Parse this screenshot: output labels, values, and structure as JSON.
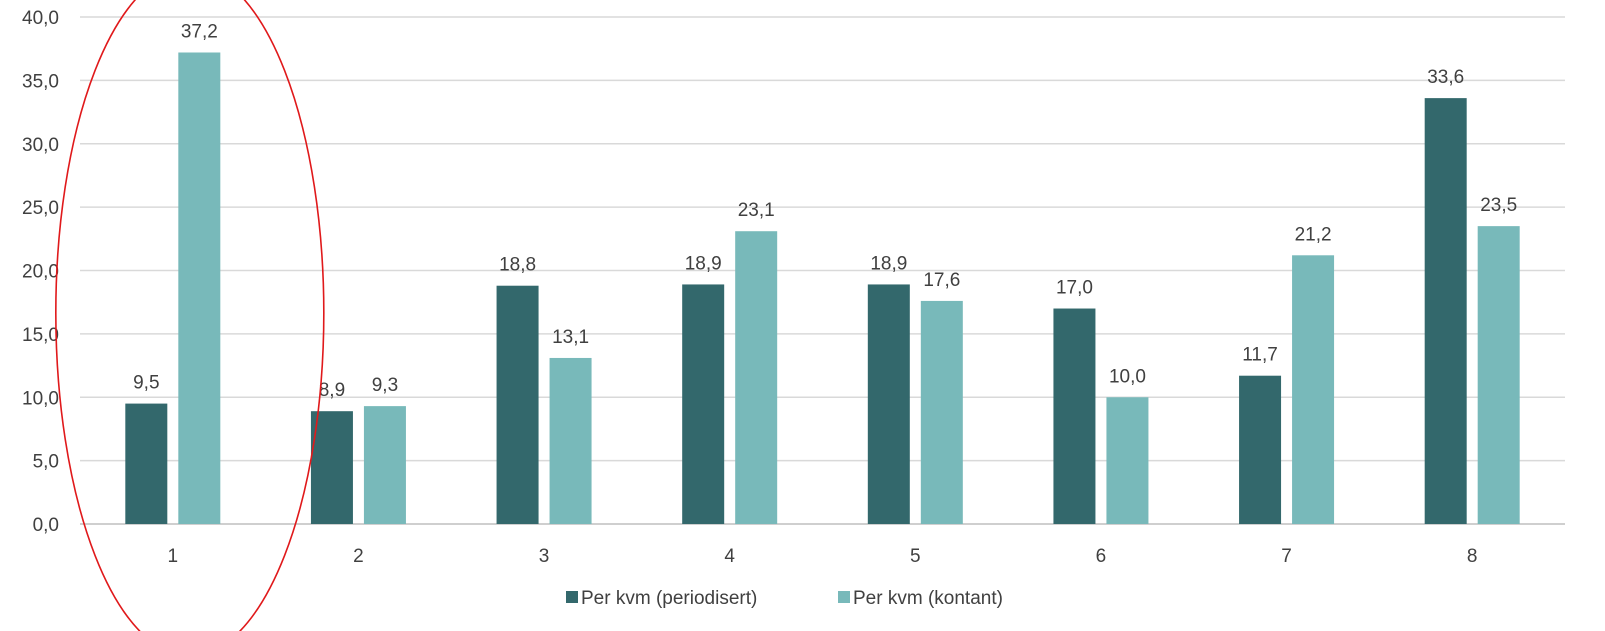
{
  "chart_data": {
    "type": "bar",
    "categories": [
      "1",
      "2",
      "3",
      "4",
      "5",
      "6",
      "7",
      "8"
    ],
    "series": [
      {
        "name": "Per kvm (periodisert)",
        "color": "#33686c",
        "values": [
          9.5,
          8.9,
          18.8,
          18.9,
          18.9,
          17.0,
          11.7,
          33.6
        ],
        "labels": [
          "9,5",
          "8,9",
          "18,8",
          "18,9",
          "18,9",
          "17,0",
          "11,7",
          "33,6"
        ]
      },
      {
        "name": "Per kvm (kontant)",
        "color": "#78b9ba",
        "values": [
          37.2,
          9.3,
          13.1,
          23.1,
          17.6,
          10.0,
          21.2,
          23.5
        ],
        "labels": [
          "37,2",
          "9,3",
          "13,1",
          "23,1",
          "17,6",
          "10,0",
          "21,2",
          "23,5"
        ]
      }
    ],
    "ylim": [
      0,
      40
    ],
    "yticks": [
      "0,0",
      "5,0",
      "10,0",
      "15,0",
      "20,0",
      "25,0",
      "30,0",
      "35,0",
      "40,0"
    ],
    "grid": true,
    "legend": "bottom-center",
    "annotation": {
      "shape": "ellipse",
      "color": "#e0191b",
      "encloses_category": "1"
    }
  }
}
